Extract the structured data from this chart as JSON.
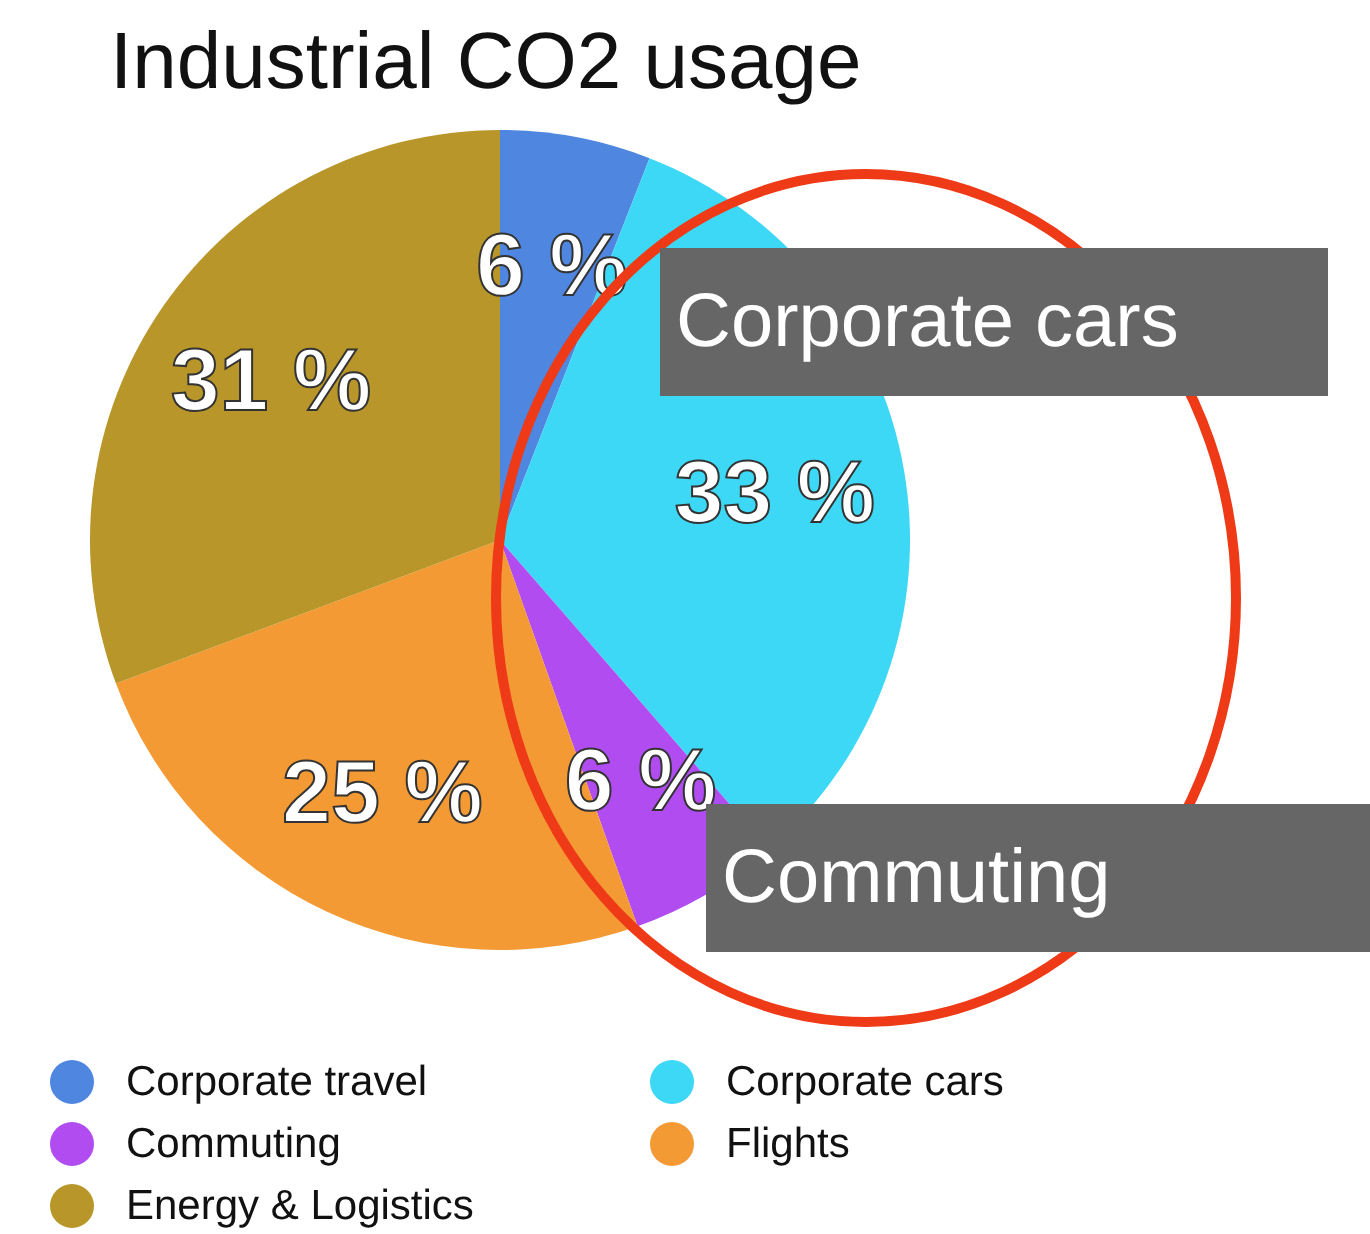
{
  "chart_data": {
    "type": "pie",
    "title": "Industrial CO2 usage",
    "categories": [
      "Corporate travel",
      "Corporate cars",
      "Commuting",
      "Flights",
      "Energy & Logistics"
    ],
    "values": [
      6,
      33,
      6,
      25,
      31
    ],
    "value_labels": [
      "6 %",
      "33 %",
      "6 %",
      "25 %",
      "31 %"
    ],
    "colors": [
      "#4f86e0",
      "#3dd8f5",
      "#b04cf0",
      "#f49a35",
      "#b8962a"
    ],
    "legend": "bottom",
    "annotations": [
      "Corporate cars",
      "Commuting"
    ]
  }
}
